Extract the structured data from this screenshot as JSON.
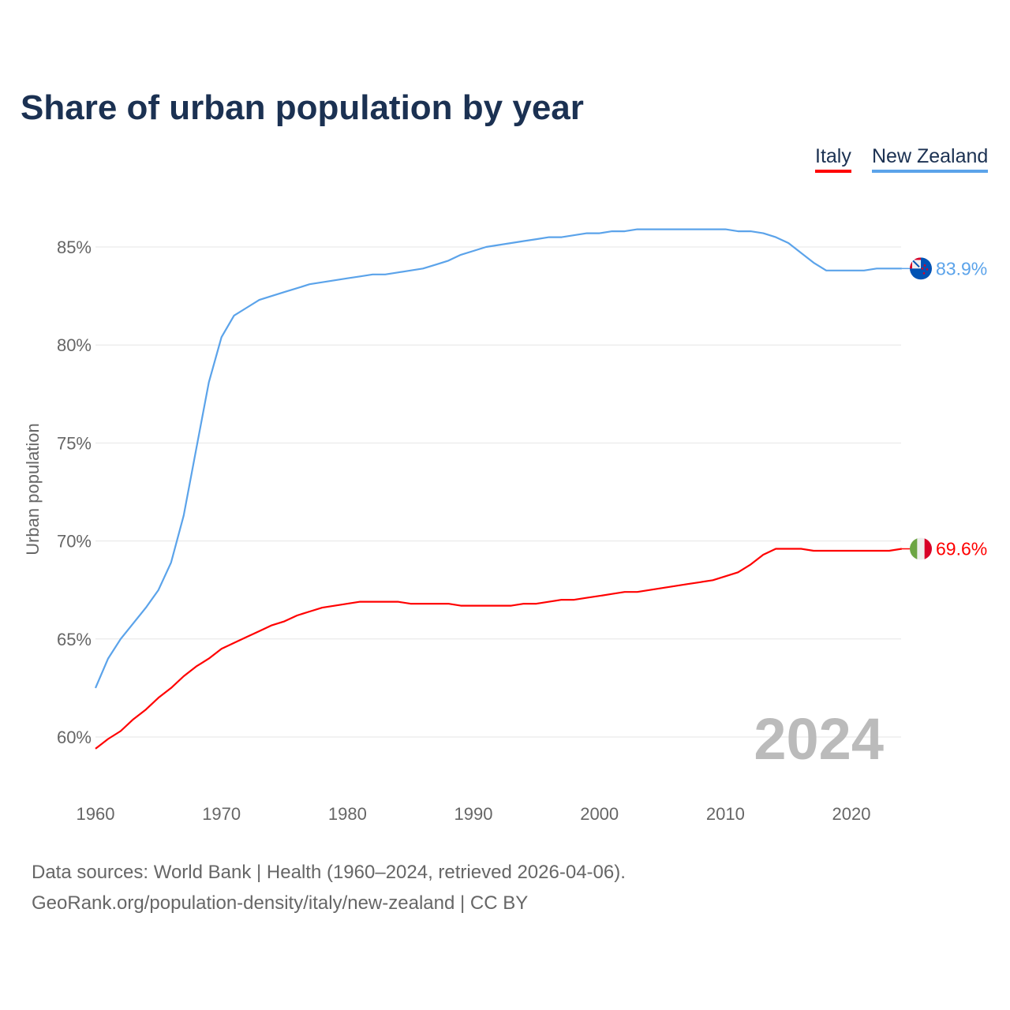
{
  "title": "Share of urban population by year",
  "legend": [
    {
      "name": "Italy",
      "color": "#ff0000"
    },
    {
      "name": "New Zealand",
      "color": "#5ba3ea"
    }
  ],
  "footer": {
    "line1": "Data sources: World Bank | Health (1960–2024, retrieved 2026-04-06).",
    "line2": "GeoRank.org/population-density/italy/new-zealand | CC BY"
  },
  "chart_data": {
    "type": "line",
    "title": "Share of urban population by year",
    "xlabel": "",
    "ylabel": "Urban population",
    "xlim": [
      1960,
      2024
    ],
    "ylim": [
      57.5,
      87.5
    ],
    "x_ticks": [
      "1960",
      "1970",
      "1980",
      "1990",
      "2000",
      "2010",
      "2020"
    ],
    "y_ticks": [
      {
        "v": 60,
        "label": "60%"
      },
      {
        "v": 65,
        "label": "65%"
      },
      {
        "v": 70,
        "label": "70%"
      },
      {
        "v": 75,
        "label": "75%"
      },
      {
        "v": 80,
        "label": "80%"
      },
      {
        "v": 85,
        "label": "85%"
      }
    ],
    "year_watermark": "2024",
    "x_start": 1960,
    "series": [
      {
        "name": "New Zealand",
        "color": "#5ba3ea",
        "end_label": "83.9%",
        "flag": "new-zealand",
        "values": [
          62.5,
          64.0,
          65.0,
          65.8,
          66.6,
          67.5,
          68.9,
          71.3,
          74.7,
          78.1,
          80.4,
          81.5,
          81.9,
          82.3,
          82.5,
          82.7,
          82.9,
          83.1,
          83.2,
          83.3,
          83.4,
          83.5,
          83.6,
          83.6,
          83.7,
          83.8,
          83.9,
          84.1,
          84.3,
          84.6,
          84.8,
          85.0,
          85.1,
          85.2,
          85.3,
          85.4,
          85.5,
          85.5,
          85.6,
          85.7,
          85.7,
          85.8,
          85.8,
          85.9,
          85.9,
          85.9,
          85.9,
          85.9,
          85.9,
          85.9,
          85.9,
          85.8,
          85.8,
          85.7,
          85.5,
          85.2,
          84.7,
          84.2,
          83.8,
          83.8,
          83.8,
          83.8,
          83.9,
          83.9,
          83.9
        ]
      },
      {
        "name": "Italy",
        "color": "#ff0000",
        "end_label": "69.6%",
        "flag": "italy",
        "values": [
          59.4,
          59.9,
          60.3,
          60.9,
          61.4,
          62.0,
          62.5,
          63.1,
          63.6,
          64.0,
          64.5,
          64.8,
          65.1,
          65.4,
          65.7,
          65.9,
          66.2,
          66.4,
          66.6,
          66.7,
          66.8,
          66.9,
          66.9,
          66.9,
          66.9,
          66.8,
          66.8,
          66.8,
          66.8,
          66.7,
          66.7,
          66.7,
          66.7,
          66.7,
          66.8,
          66.8,
          66.9,
          67.0,
          67.0,
          67.1,
          67.2,
          67.3,
          67.4,
          67.4,
          67.5,
          67.6,
          67.7,
          67.8,
          67.9,
          68.0,
          68.2,
          68.4,
          68.8,
          69.3,
          69.6,
          69.6,
          69.6,
          69.5,
          69.5,
          69.5,
          69.5,
          69.5,
          69.5,
          69.5,
          69.6
        ]
      }
    ]
  }
}
